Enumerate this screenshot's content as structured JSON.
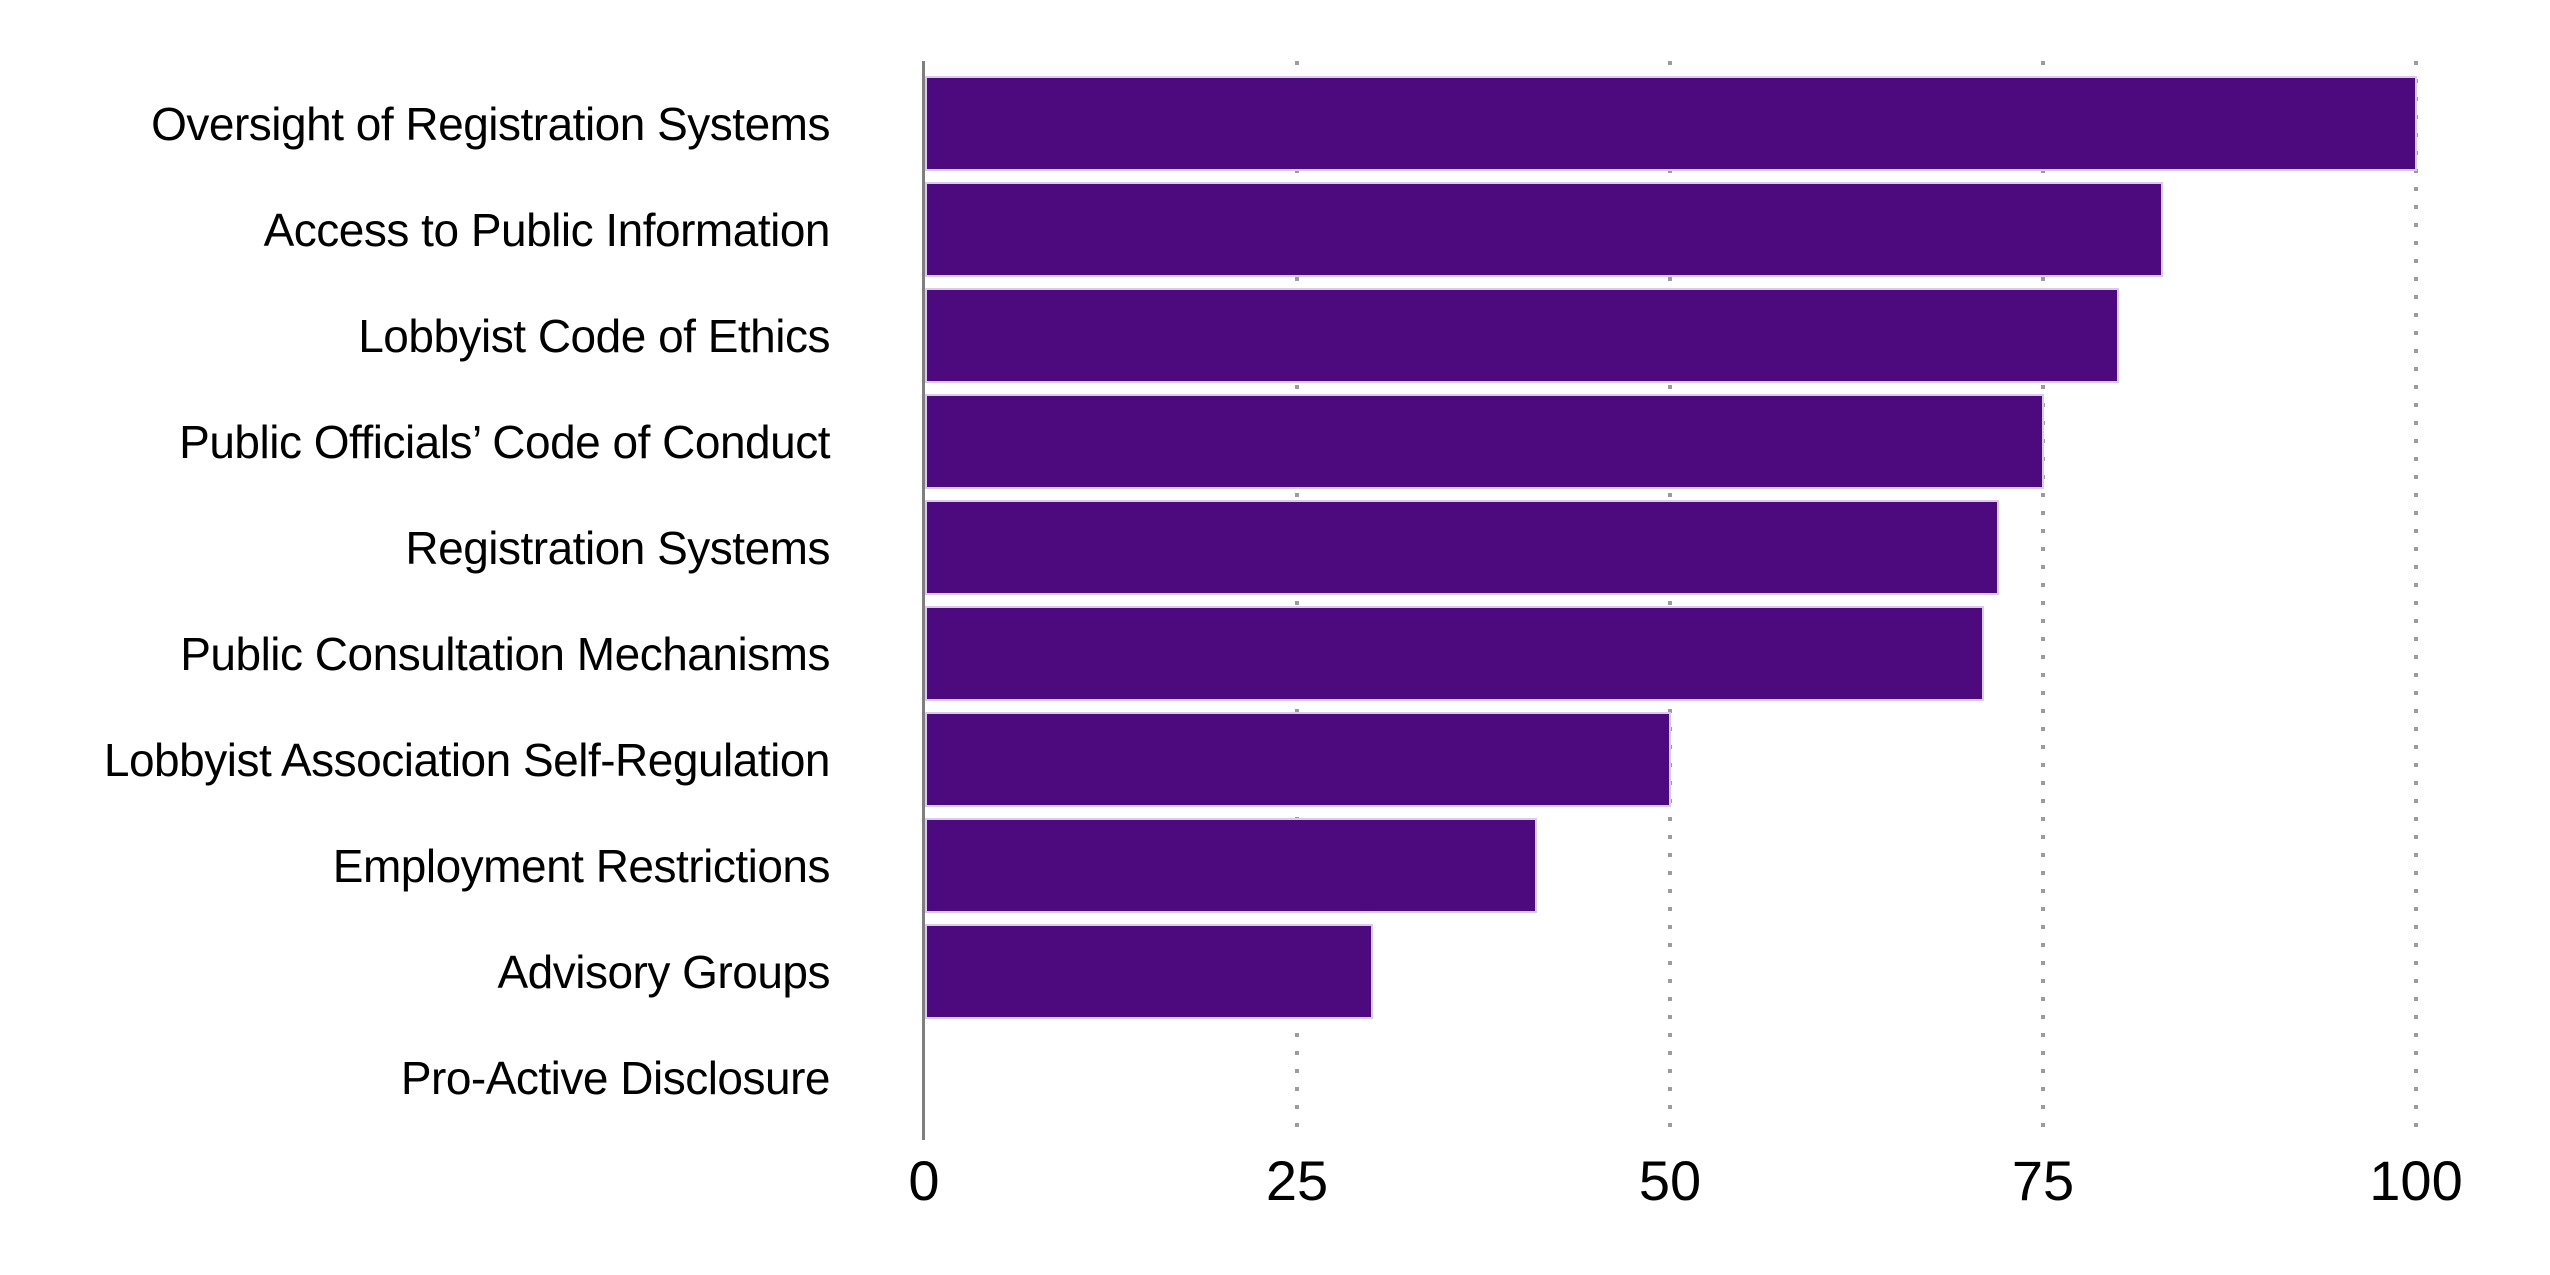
{
  "chart_data": {
    "type": "bar",
    "orientation": "horizontal",
    "title": "",
    "xlabel": "",
    "ylabel": "",
    "categories": [
      "Oversight of Registration Systems",
      "Access to Public Information",
      "Lobbyist Code of Ethics",
      "Public Officials’ Code of Conduct",
      "Registration Systems",
      "Public Consultation Mechanisms",
      "Lobbyist Association Self-Regulation",
      "Employment Restrictions",
      "Advisory Groups",
      "Pro-Active Disclosure"
    ],
    "values": [
      100,
      83,
      80,
      75,
      72,
      71,
      50,
      41,
      30,
      0
    ],
    "xticks": [
      "0",
      "25",
      "50",
      "75",
      "100"
    ],
    "xtick_values": [
      0,
      25,
      50,
      75,
      100
    ],
    "xlim": [
      0,
      100
    ],
    "legend": null,
    "grid": "vertical-dotted",
    "bar_color": "#4d0a7e",
    "bar_edge_color": "#dccaec",
    "axis_line_color": "#7f7f7f",
    "gridline_color": "#9c9c9c",
    "text_color": "#000000",
    "background_color": "#ffffff"
  }
}
